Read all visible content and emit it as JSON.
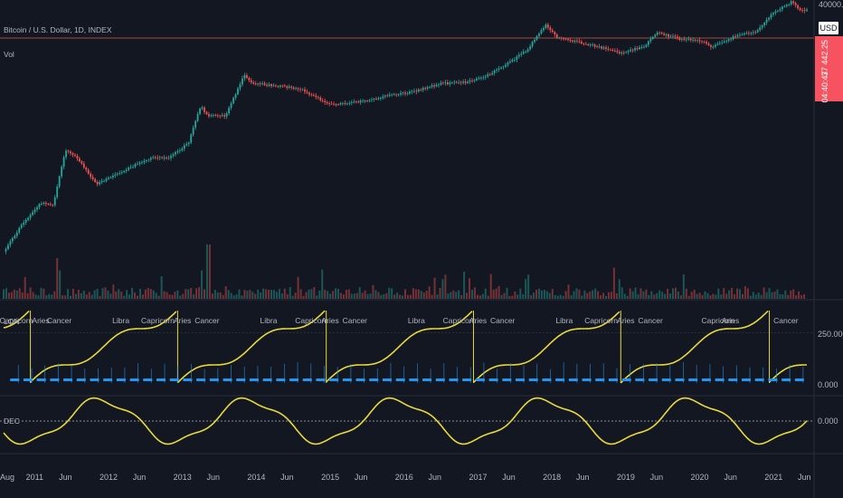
{
  "symbol": {
    "title": "Bitcoin / U.S. Dollar, 1D, INDEX",
    "volume_label": "Vol"
  },
  "price_scale": {
    "currency": "USD",
    "top_label": "40000.00",
    "price_badge": "37 442.25",
    "timer_badge": "04:40:47"
  },
  "lon_panel": {
    "label": "LON",
    "ticks": [
      "250.000",
      "0.000"
    ]
  },
  "dec_panel": {
    "label": "DEC",
    "ticks": [
      "0.000"
    ]
  },
  "colors": {
    "background": "#131722",
    "up": "#26a69a",
    "down": "#ef5350",
    "line": "#e8d93c",
    "marker": "#2196f3",
    "badge": "#f7525f",
    "last_price_line": "#a14a40"
  },
  "chart_data": [
    {
      "type": "line",
      "title": "Bitcoin / U.S. Dollar, 1D, INDEX",
      "y_scale": "log",
      "ylim": [
        0.06,
        40000
      ],
      "x": [
        "2010-08",
        "2010-11",
        "2011-02",
        "2011-04",
        "2011-06",
        "2011-08",
        "2011-11",
        "2012-03",
        "2012-08",
        "2012-11",
        "2013-02",
        "2013-04",
        "2013-05",
        "2013-08",
        "2013-11",
        "2013-12",
        "2014-03",
        "2014-08",
        "2015-01",
        "2015-06",
        "2015-11",
        "2016-02",
        "2016-07",
        "2016-11",
        "2017-03",
        "2017-07",
        "2017-09",
        "2017-12",
        "2018-02",
        "2018-06",
        "2018-11",
        "2018-12",
        "2019-04",
        "2019-06",
        "2019-10",
        "2020-01",
        "2020-03",
        "2020-07",
        "2020-10",
        "2021-01",
        "2021-04",
        "2021-05",
        "2021-06"
      ],
      "y": [
        0.06,
        0.28,
        0.9,
        0.8,
        17,
        10,
        2.5,
        5,
        11,
        11,
        25,
        200,
        110,
        110,
        1050,
        700,
        600,
        500,
        200,
        240,
        350,
        400,
        650,
        700,
        1100,
        2600,
        4300,
        17000,
        8000,
        6200,
        4000,
        3500,
        5000,
        11000,
        7500,
        7000,
        5000,
        9200,
        11000,
        33000,
        60000,
        40000,
        37442.25
      ]
    },
    {
      "type": "bar",
      "title": "Vol"
    },
    {
      "type": "line",
      "title": "LON",
      "ylim": [
        0,
        360
      ],
      "yticks": [
        0,
        250
      ],
      "sign_labels": [
        {
          "x": "2010-10",
          "text": "Capricorn"
        },
        {
          "x": "2011-02",
          "text": "Aries"
        },
        {
          "x": "2011-05",
          "text": "Cancer"
        },
        {
          "x": "2012-03",
          "text": "Libra"
        },
        {
          "x": "2012-09",
          "text": "Capricorn"
        },
        {
          "x": "2013-01",
          "text": "Aries"
        },
        {
          "x": "2013-05",
          "text": "Cancer"
        },
        {
          "x": "2014-03",
          "text": "Libra"
        },
        {
          "x": "2014-10",
          "text": "Capricorn"
        },
        {
          "x": "2015-01",
          "text": "Aries"
        },
        {
          "x": "2015-05",
          "text": "Cancer"
        },
        {
          "x": "2016-03",
          "text": "Libra"
        },
        {
          "x": "2016-10",
          "text": "Capricorn"
        },
        {
          "x": "2017-01",
          "text": "Aries"
        },
        {
          "x": "2017-05",
          "text": "Cancer"
        },
        {
          "x": "2018-03",
          "text": "Libra"
        },
        {
          "x": "2018-09",
          "text": "Capricorn"
        },
        {
          "x": "2019-01",
          "text": "Aries"
        },
        {
          "x": "2019-05",
          "text": "Cancer"
        },
        {
          "x": "2020-04",
          "text": "Capricorn"
        },
        {
          "x": "2020-06",
          "text": "Aries"
        },
        {
          "x": "2021-03",
          "text": "Cancer"
        }
      ]
    },
    {
      "type": "line",
      "title": "DEC",
      "yticks": [
        0
      ]
    }
  ],
  "x_axis_ticks": [
    {
      "label": "Aug",
      "date": "2010-08"
    },
    {
      "label": "2011",
      "date": "2011-01"
    },
    {
      "label": "Jun",
      "date": "2011-06"
    },
    {
      "label": "2012",
      "date": "2012-01"
    },
    {
      "label": "Jun",
      "date": "2012-06"
    },
    {
      "label": "2013",
      "date": "2013-01"
    },
    {
      "label": "Jun",
      "date": "2013-06"
    },
    {
      "label": "2014",
      "date": "2014-01"
    },
    {
      "label": "Jun",
      "date": "2014-06"
    },
    {
      "label": "2015",
      "date": "2015-01"
    },
    {
      "label": "Jun",
      "date": "2015-06"
    },
    {
      "label": "2016",
      "date": "2016-01"
    },
    {
      "label": "Jun",
      "date": "2016-06"
    },
    {
      "label": "2017",
      "date": "2017-01"
    },
    {
      "label": "Jun",
      "date": "2017-06"
    },
    {
      "label": "2018",
      "date": "2018-01"
    },
    {
      "label": "Jun",
      "date": "2018-06"
    },
    {
      "label": "2019",
      "date": "2019-01"
    },
    {
      "label": "Jun",
      "date": "2019-06"
    },
    {
      "label": "2020",
      "date": "2020-01"
    },
    {
      "label": "Jun",
      "date": "2020-06"
    },
    {
      "label": "2021",
      "date": "2021-01"
    },
    {
      "label": "Jun",
      "date": "2021-06"
    }
  ]
}
